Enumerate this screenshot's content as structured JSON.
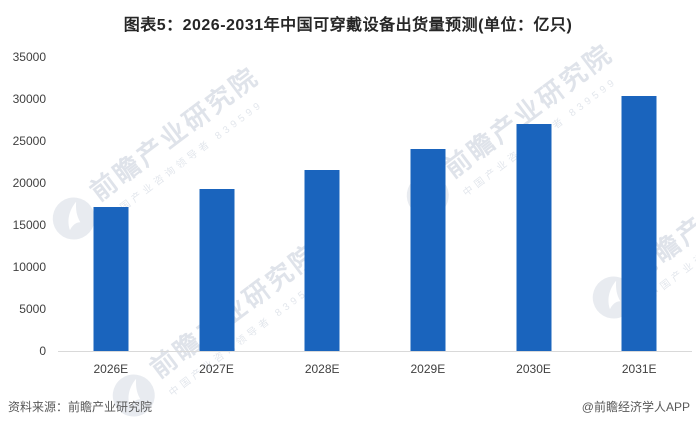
{
  "chart_data": {
    "type": "bar",
    "title": "图表5：2026-2031年中国可穿戴设备出货量预测(单位：亿只)",
    "categories": [
      "2026E",
      "2027E",
      "2028E",
      "2029E",
      "2030E",
      "2031E"
    ],
    "values": [
      17200,
      19300,
      21500,
      24000,
      27000,
      30300
    ],
    "unit": "亿只",
    "xlabel": "",
    "ylabel": "",
    "ylim": [
      0,
      35000
    ],
    "ytick_step": 5000,
    "grid": false,
    "legend_position": "none",
    "bar_color": "#1a64bd"
  },
  "footer": {
    "source": "资料来源：前瞻产业研究院",
    "credit": "@前瞻经济学人APP"
  },
  "watermark": {
    "icon": "qianzhan-bird-logo",
    "text": "前瞻产业研究院",
    "subtext": "中国产业咨询领导者 839599"
  }
}
